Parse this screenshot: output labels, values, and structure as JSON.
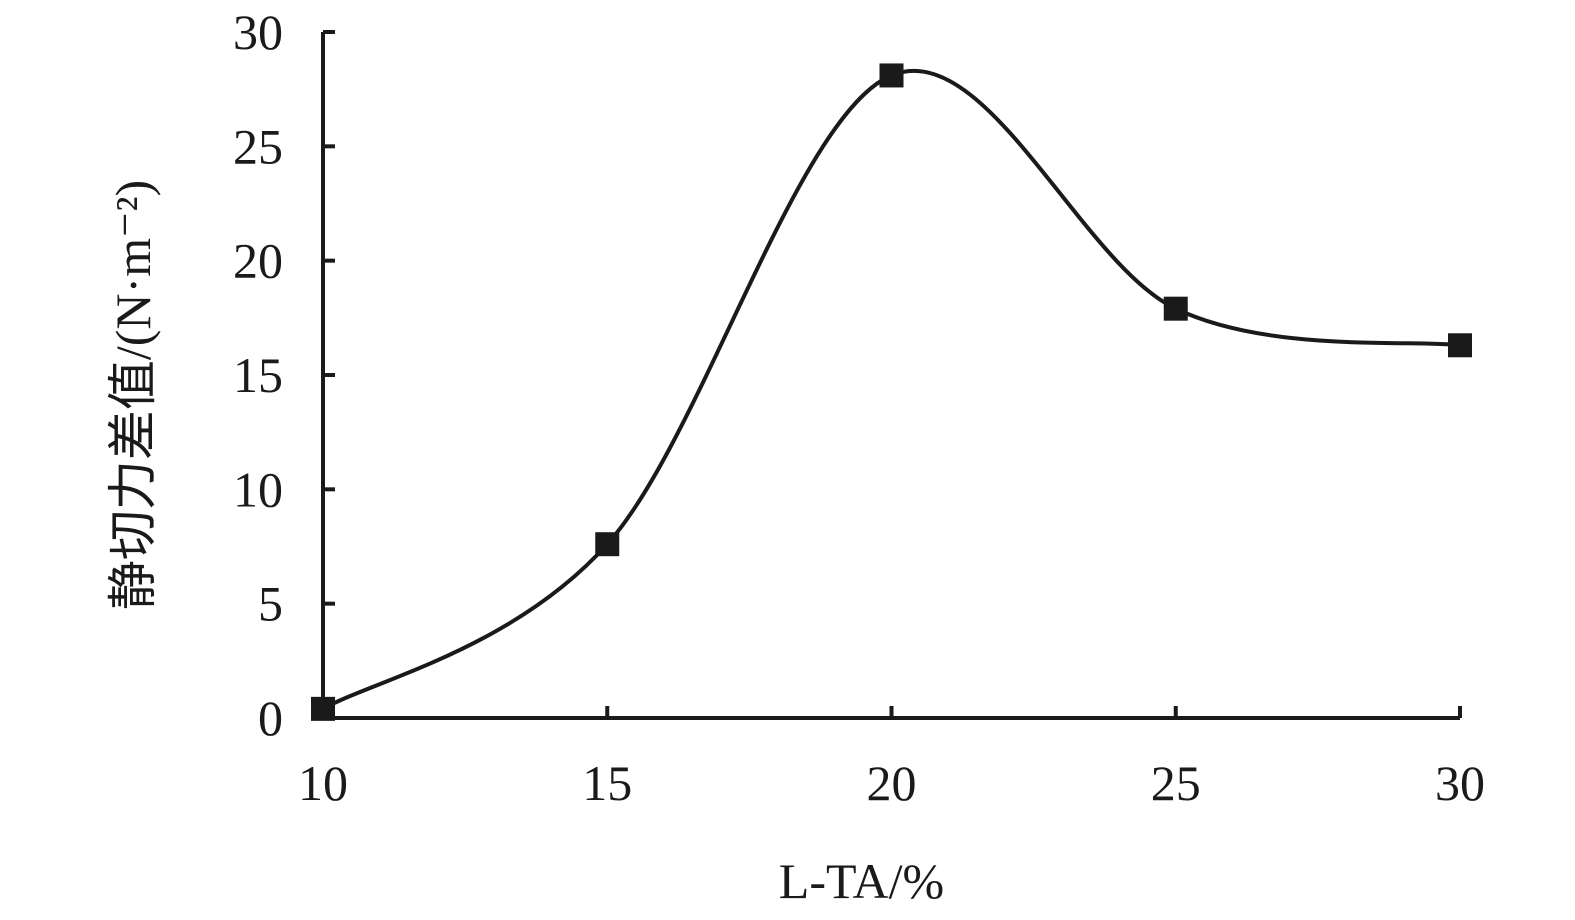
{
  "chart_data": {
    "type": "line",
    "title": "",
    "xlabel": "L-TA/%",
    "ylabel": "静切力差值/(N·m⁻²)",
    "xlim": [
      10,
      30
    ],
    "ylim": [
      0,
      30
    ],
    "x_ticks": [
      10,
      15,
      20,
      25,
      30
    ],
    "y_ticks": [
      0,
      5,
      10,
      15,
      20,
      25,
      30
    ],
    "grid": false,
    "legend": "none",
    "smooth": true,
    "marker": "square",
    "series": [
      {
        "x": [
          10,
          15,
          20,
          25,
          30
        ],
        "values": [
          0.4,
          7.6,
          28.1,
          17.9,
          16.3
        ],
        "color": "#1a1a1a"
      }
    ]
  }
}
